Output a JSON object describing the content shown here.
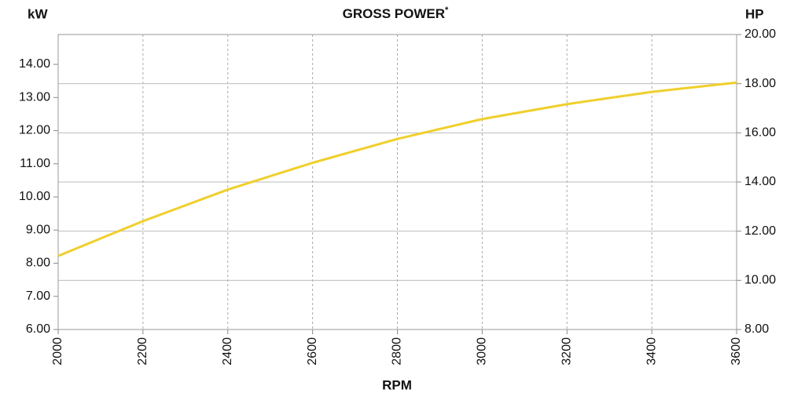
{
  "chart_data": {
    "type": "line",
    "title": "GROSS POWER",
    "title_superscript": "*",
    "ylabel": "kW",
    "y2label": "HP",
    "xlabel": "RPM",
    "x": [
      2000,
      2200,
      2400,
      2600,
      2800,
      3000,
      3200,
      3400,
      3600
    ],
    "series": [
      {
        "name": "Gross power",
        "color": "#f0cf2c",
        "values": [
          8.22,
          9.27,
          10.22,
          11.03,
          11.75,
          12.35,
          12.8,
          13.17,
          13.45
        ]
      }
    ],
    "xlim": [
      2000,
      3600
    ],
    "xticks": [
      2000,
      2200,
      2400,
      2600,
      2800,
      3000,
      3200,
      3400,
      3600
    ],
    "ylim": [
      6,
      14.9
    ],
    "yticks": [
      {
        "value": 6,
        "label": "6.00"
      },
      {
        "value": 7,
        "label": "7.00"
      },
      {
        "value": 8,
        "label": "8.00"
      },
      {
        "value": 9,
        "label": "9.00"
      },
      {
        "value": 10,
        "label": "10.00"
      },
      {
        "value": 11,
        "label": "11.00"
      },
      {
        "value": 12,
        "label": "12.00"
      },
      {
        "value": 13,
        "label": "13.00"
      },
      {
        "value": 14,
        "label": "14.00"
      }
    ],
    "y2lim": [
      8,
      20
    ],
    "y2ticks": [
      {
        "value": 8,
        "label": "8.00"
      },
      {
        "value": 10,
        "label": "10.00"
      },
      {
        "value": 12,
        "label": "12.00"
      },
      {
        "value": 14,
        "label": "14.00"
      },
      {
        "value": 16,
        "label": "16.00"
      },
      {
        "value": 18,
        "label": "18.00"
      },
      {
        "value": 20,
        "label": "20.00"
      }
    ],
    "grid": true
  }
}
